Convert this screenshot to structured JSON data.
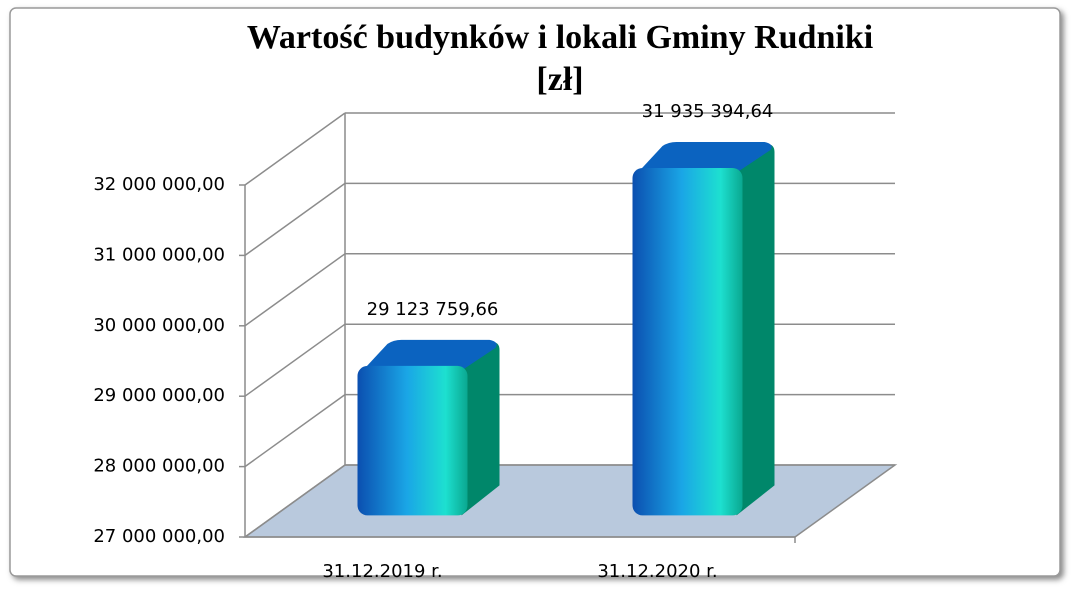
{
  "chart_data": {
    "type": "bar3d",
    "title": [
      "Wartość budynków i lokali Gminy Rudniki",
      "[zł]"
    ],
    "categories": [
      "31.12.2019 r.",
      "31.12.2020 r."
    ],
    "values": [
      29123759.66,
      31935394.64
    ],
    "value_labels": [
      "29 123 759,66",
      "31 935 394,64"
    ],
    "ylim": [
      27000000,
      32000000
    ],
    "yticks": [
      {
        "value": 27000000,
        "label": "27 000 000,00"
      },
      {
        "value": 28000000,
        "label": "28 000 000,00"
      },
      {
        "value": 29000000,
        "label": "29 000 000,00"
      },
      {
        "value": 30000000,
        "label": "30 000 000,00"
      },
      {
        "value": 31000000,
        "label": "31 000 000,00"
      },
      {
        "value": 32000000,
        "label": "32 000 000,00"
      }
    ],
    "grid": true
  }
}
